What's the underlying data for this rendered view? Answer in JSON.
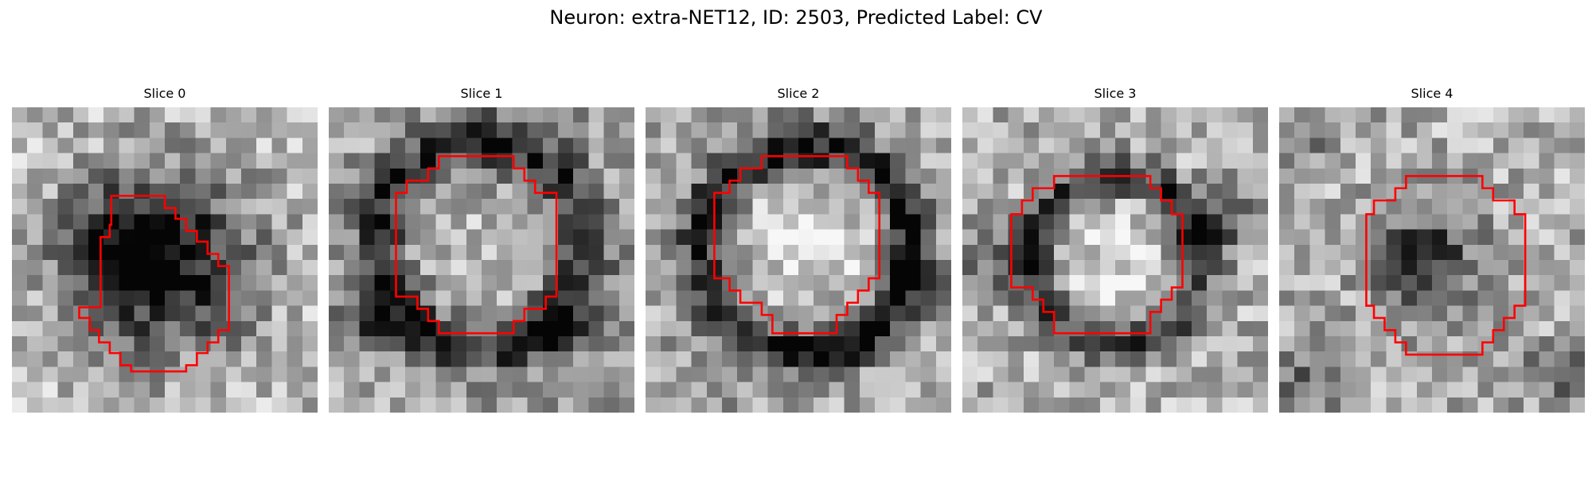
{
  "figure": {
    "title": "Neuron: extra-NET12, ID: 2503, Predicted Label: CV",
    "contour_color": "#ff0000"
  },
  "slices": [
    {
      "title": "Slice 0",
      "appearance": "dark blob upper-left-center with lighter surround; red octagonal contour offset down-right",
      "blob": {
        "cx": 10.0,
        "cy": 10.0,
        "r": 6.5,
        "dark": 0.72
      },
      "ring": null,
      "extra": [
        {
          "cx": 6.0,
          "cy": 9.5,
          "r": 4.0,
          "dark": 0.35
        }
      ],
      "base": 0.72
    },
    {
      "title": "Slice 1",
      "appearance": "dark ring around lighter center; contour upper-center",
      "blob": {
        "cx": 10.0,
        "cy": 9.0,
        "r": 4.0,
        "dark": -0.15
      },
      "ring": {
        "cx": 10.0,
        "cy": 9.0,
        "r": 6.8,
        "w": 2.0,
        "dark": 0.45
      },
      "extra": [
        {
          "cx": 15.0,
          "cy": 14.5,
          "r": 2.0,
          "dark": 0.55
        },
        {
          "cx": 3.0,
          "cy": 14.0,
          "r": 2.5,
          "dark": 0.35
        }
      ],
      "base": 0.62
    },
    {
      "title": "Slice 2",
      "appearance": "well-defined dark ring with bright interior",
      "blob": {
        "cx": 10.5,
        "cy": 9.0,
        "r": 4.8,
        "dark": -0.25
      },
      "ring": {
        "cx": 10.5,
        "cy": 9.3,
        "r": 6.8,
        "w": 1.8,
        "dark": 0.55
      },
      "extra": [
        {
          "cx": 17.5,
          "cy": 11.0,
          "r": 2.0,
          "dark": 0.3
        }
      ],
      "base": 0.64
    },
    {
      "title": "Slice 3",
      "appearance": "dark ring with bright center, dark streaks left and right",
      "blob": {
        "cx": 10.0,
        "cy": 10.0,
        "r": 3.8,
        "dark": -0.2
      },
      "ring": {
        "cx": 10.0,
        "cy": 10.0,
        "r": 5.5,
        "w": 1.6,
        "dark": 0.45
      },
      "extra": [
        {
          "cx": 16.5,
          "cy": 7.5,
          "r": 2.5,
          "dark": 0.4
        },
        {
          "cx": 2.0,
          "cy": 10.0,
          "r": 2.5,
          "dark": 0.3
        }
      ],
      "base": 0.68
    },
    {
      "title": "Slice 4",
      "appearance": "dark central blob inside contour, dark corners",
      "blob": {
        "cx": 9.5,
        "cy": 10.0,
        "r": 3.8,
        "dark": 0.55
      },
      "ring": null,
      "extra": [
        {
          "cx": 18.5,
          "cy": 17.5,
          "r": 2.5,
          "dark": 0.35
        },
        {
          "cx": 1.5,
          "cy": 18.0,
          "r": 2.5,
          "dark": 0.3
        },
        {
          "cx": 1.0,
          "cy": 2.5,
          "r": 2.0,
          "dark": 0.3
        }
      ],
      "base": 0.68
    }
  ]
}
